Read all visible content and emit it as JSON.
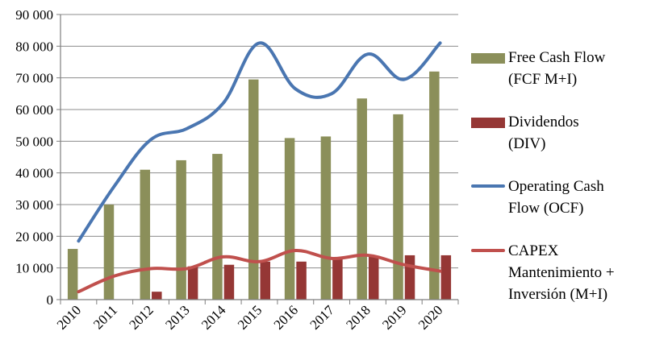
{
  "chart_data": {
    "type": "bar",
    "categories": [
      "2010",
      "2011",
      "2012",
      "2013",
      "2014",
      "2015",
      "2016",
      "2017",
      "2018",
      "2019",
      "2020"
    ],
    "ylim": [
      0,
      90000
    ],
    "yticks": [
      0,
      10000,
      20000,
      30000,
      40000,
      50000,
      60000,
      70000,
      80000,
      90000
    ],
    "ytick_labels": [
      "0",
      "10 000",
      "20 000",
      "30 000",
      "40 000",
      "50 000",
      "60 000",
      "70 000",
      "80 000",
      "90 000"
    ],
    "grid": true,
    "legend_position": "right",
    "series": [
      {
        "name": "Free Cash Flow (FCF M+I)",
        "kind": "bar",
        "color": "#8b8f5a",
        "values": [
          16000,
          30000,
          41000,
          44000,
          46000,
          69500,
          51000,
          51500,
          63500,
          58500,
          72000
        ]
      },
      {
        "name": "Dividendos (DIV)",
        "kind": "bar",
        "color": "#953735",
        "values": [
          0,
          0,
          2500,
          10500,
          11000,
          12000,
          12000,
          13000,
          13500,
          14000,
          14000
        ]
      },
      {
        "name": "Operating Cash Flow (OCF)",
        "kind": "line",
        "color": "#4a76b1",
        "values": [
          18500,
          36000,
          50500,
          54000,
          62000,
          81000,
          66500,
          65000,
          77500,
          69500,
          81000
        ]
      },
      {
        "name": "CAPEX Mantenimiento + Inversión (M+I)",
        "kind": "line",
        "color": "#c0504d",
        "values": [
          2500,
          7500,
          9800,
          9800,
          13500,
          12000,
          15500,
          13000,
          14000,
          11000,
          9000
        ]
      }
    ]
  },
  "legend": {
    "fcf_line1": "Free Cash Flow",
    "fcf_line2": "(FCF M+I)",
    "div_line1": "Dividendos",
    "div_line2": "(DIV)",
    "ocf_line1": "Operating Cash",
    "ocf_line2": "Flow (OCF)",
    "capex_line1": "CAPEX",
    "capex_line2": "Mantenimiento +",
    "capex_line3": "Inversión (M+I)"
  }
}
